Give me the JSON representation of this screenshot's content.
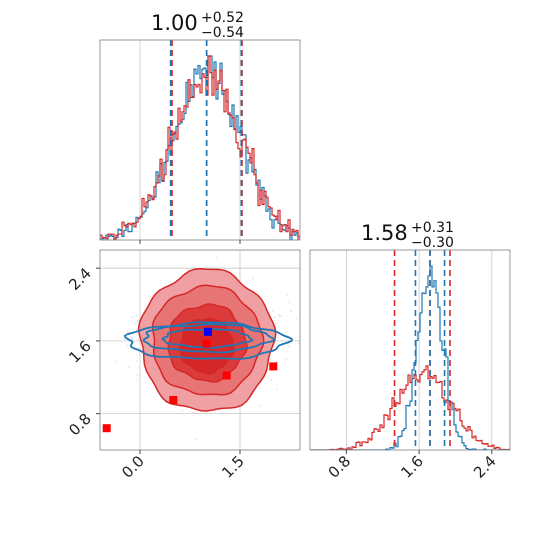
{
  "colors": {
    "blue": "#1f77b4",
    "red": "#d62728",
    "marker_blue": "#0000ff",
    "marker_red": "#ff0000",
    "red_fill_light": "#f0a0a2"
  },
  "chart_data": [
    {
      "type": "histogram",
      "panel": "top-left",
      "title": {
        "value": "1.00",
        "plus": "+0.52",
        "minus": "−0.54"
      },
      "xlim": [
        -0.6,
        2.4
      ],
      "grid": true,
      "xticks": [
        0.0,
        1.5
      ],
      "quantile_lines": {
        "blue": [
          0.46,
          1.0,
          1.52
        ],
        "red": [
          0.48,
          1.0,
          1.53
        ]
      },
      "series": [
        {
          "name": "",
          "color": "#1f77b4",
          "center": 1.0,
          "sd": 0.5
        },
        {
          "name": "",
          "color": "#d62728",
          "center": 1.0,
          "sd": 0.52
        }
      ]
    },
    {
      "type": "histogram",
      "panel": "bottom-right",
      "title": {
        "value": "1.58",
        "plus": "+0.31",
        "minus": "−0.30"
      },
      "xlim": [
        0.4,
        2.6
      ],
      "grid": true,
      "xticks": [
        0.8,
        1.6,
        2.4
      ],
      "xticklabels": [
        "0.8",
        "1.6",
        "2.4"
      ],
      "quantile_lines": {
        "blue": [
          1.56,
          1.72,
          1.88
        ],
        "red": [
          1.33,
          1.72,
          1.94
        ]
      },
      "series": [
        {
          "name": "",
          "color": "#1f77b4",
          "center": 1.72,
          "sd": 0.14
        },
        {
          "name": "",
          "color": "#d62728",
          "center": 1.64,
          "sd": 0.3
        }
      ]
    },
    {
      "type": "scatter",
      "panel": "bottom-left",
      "xlim": [
        -0.6,
        2.4
      ],
      "ylim": [
        0.4,
        2.6
      ],
      "grid": true,
      "xticks": [
        0.0,
        1.5
      ],
      "xticklabels": [
        "0.0",
        "1.5"
      ],
      "yticks": [
        0.8,
        1.6,
        2.4
      ],
      "yticklabels": [
        "0.8",
        "1.6",
        "2.4"
      ],
      "contours_red": [
        {
          "cx": 1.0,
          "cy": 1.6,
          "rx": 1.0,
          "ry": 0.78
        },
        {
          "cx": 1.0,
          "cy": 1.6,
          "rx": 0.82,
          "ry": 0.6
        },
        {
          "cx": 1.0,
          "cy": 1.58,
          "rx": 0.58,
          "ry": 0.42
        },
        {
          "cx": 1.0,
          "cy": 1.55,
          "rx": 0.4,
          "ry": 0.3
        }
      ],
      "contours_blue": [
        {
          "cx": 1.0,
          "cy": 1.6,
          "rx": 1.2,
          "ry": 0.2
        },
        {
          "cx": 1.0,
          "cy": 1.63,
          "rx": 0.95,
          "ry": 0.15
        },
        {
          "cx": 1.0,
          "cy": 1.63,
          "rx": 0.65,
          "ry": 0.1
        }
      ],
      "markers_red": [
        [
          -0.5,
          0.64
        ],
        [
          0.5,
          0.95
        ],
        [
          1.3,
          1.22
        ],
        [
          2.0,
          1.32
        ],
        [
          1.0,
          1.57
        ]
      ],
      "markers_blue": [
        [
          1.02,
          1.7
        ]
      ]
    }
  ]
}
